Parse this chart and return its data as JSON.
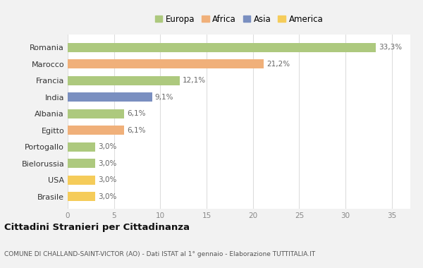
{
  "categories": [
    "Brasile",
    "USA",
    "Bielorussia",
    "Portogallo",
    "Egitto",
    "Albania",
    "India",
    "Francia",
    "Marocco",
    "Romania"
  ],
  "values": [
    3.0,
    3.0,
    3.0,
    3.0,
    6.1,
    6.1,
    9.1,
    12.1,
    21.2,
    33.3
  ],
  "labels": [
    "3,0%",
    "3,0%",
    "3,0%",
    "3,0%",
    "6,1%",
    "6,1%",
    "9,1%",
    "12,1%",
    "21,2%",
    "33,3%"
  ],
  "colors": [
    "#f5cc5a",
    "#f5cc5a",
    "#adc97e",
    "#adc97e",
    "#f0b07a",
    "#adc97e",
    "#7a8fc0",
    "#adc97e",
    "#f0b07a",
    "#adc97e"
  ],
  "legend": [
    {
      "label": "Europa",
      "color": "#adc97e"
    },
    {
      "label": "Africa",
      "color": "#f0b07a"
    },
    {
      "label": "Asia",
      "color": "#7a8fc0"
    },
    {
      "label": "America",
      "color": "#f5cc5a"
    }
  ],
  "title1": "Cittadini Stranieri per Cittadinanza",
  "title2": "COMUNE DI CHALLAND-SAINT-VICTOR (AO) - Dati ISTAT al 1° gennaio - Elaborazione TUTTITALIA.IT",
  "xlim": [
    0,
    37
  ],
  "xticks": [
    0,
    5,
    10,
    15,
    20,
    25,
    30,
    35
  ],
  "background_color": "#f2f2f2",
  "bar_background": "#ffffff",
  "grid_color": "#dddddd",
  "label_color": "#666666",
  "tick_color": "#888888"
}
